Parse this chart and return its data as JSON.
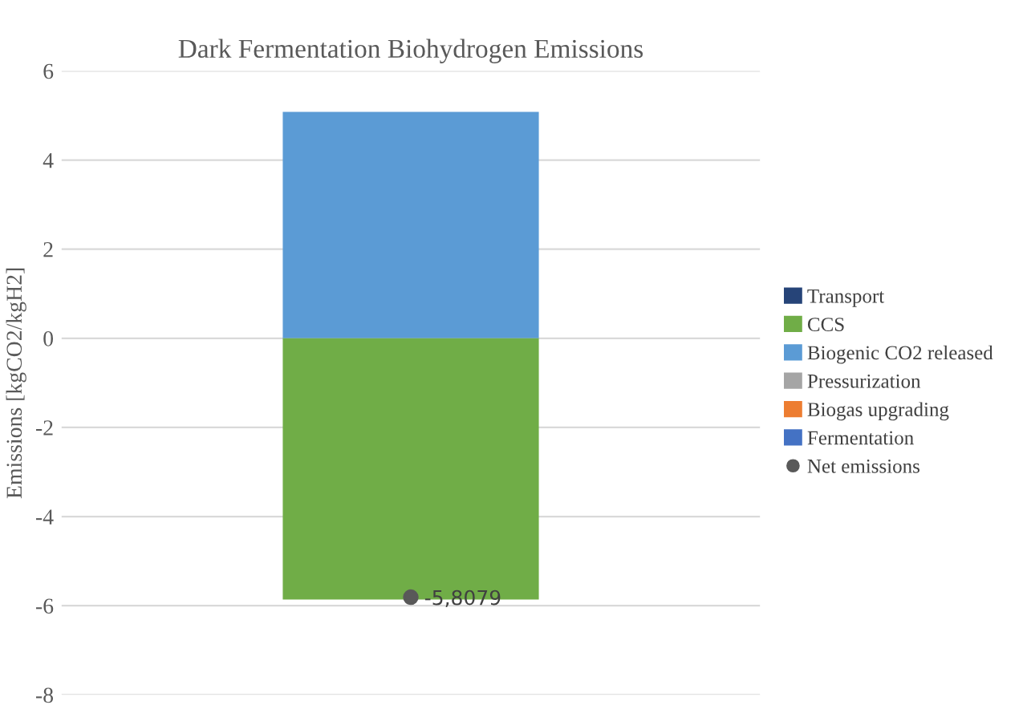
{
  "chart_data": {
    "type": "bar",
    "title": "Dark Fermentation Biohydrogen Emissions",
    "ylabel": "Emissions [kgCO2/kgH2]",
    "categories": [
      null
    ],
    "stacked": true,
    "series": [
      {
        "name": "Fermentation",
        "color": "#4472c4",
        "values": [
          0
        ]
      },
      {
        "name": "Biogas upgrading",
        "color": "#ed7d31",
        "values": [
          0
        ]
      },
      {
        "name": "Pressurization",
        "color": "#a5a5a5",
        "values": [
          0
        ]
      },
      {
        "name": "Biogenic CO2 released",
        "color": "#5b9bd5",
        "values": [
          5.08
        ]
      },
      {
        "name": "CCS",
        "color": "#70ad47",
        "values": [
          -5.86
        ]
      },
      {
        "name": "Transport",
        "color": "#264478",
        "values": [
          0
        ]
      },
      {
        "name": "Net emissions",
        "type": "scatter",
        "color": "#595959",
        "values": [
          -5.8079
        ],
        "value_labels": [
          "-5,8079"
        ],
        "marker": "circle"
      }
    ],
    "ylim": [
      -8,
      6
    ],
    "yticks": [
      -8,
      -6,
      -4,
      -2,
      0,
      2,
      4,
      6
    ],
    "grid": "y",
    "legend": "right"
  }
}
